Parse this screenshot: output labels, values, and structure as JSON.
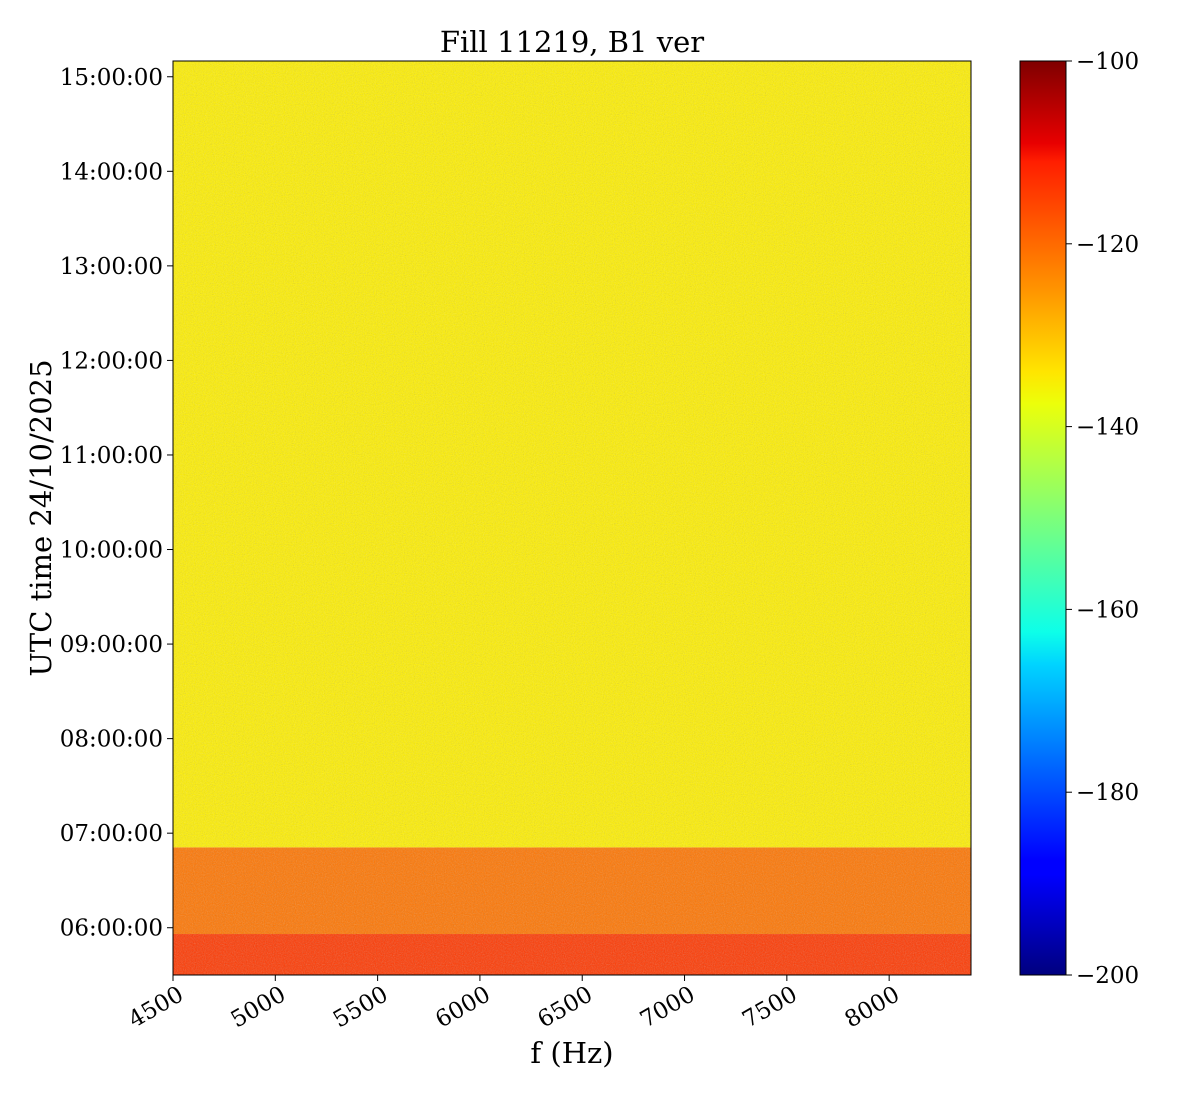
{
  "chart_data": {
    "type": "heatmap",
    "title": "Fill 11219, B1 ver",
    "xlabel": "f (Hz)",
    "ylabel": "UTC time 24/10/2025",
    "xlim": [
      4500,
      8400
    ],
    "ylim": [
      "05:30:00",
      "15:10:00"
    ],
    "x_ticks": [
      4500,
      5000,
      5500,
      6000,
      6500,
      7000,
      7500,
      8000
    ],
    "x_tick_labels": [
      "4500",
      "5000",
      "5500",
      "6000",
      "6500",
      "7000",
      "7500",
      "8000"
    ],
    "y_ticks": [
      "06:00:00",
      "07:00:00",
      "08:00:00",
      "09:00:00",
      "10:00:00",
      "11:00:00",
      "12:00:00",
      "13:00:00",
      "14:00:00",
      "15:00:00"
    ],
    "colorbar": {
      "colormap": "jet",
      "range": [
        -200,
        -100
      ],
      "ticks": [
        -100,
        -120,
        -140,
        -160,
        -180,
        -200
      ],
      "tick_labels": [
        "−100",
        "−120",
        "−140",
        "−160",
        "−180",
        "−200"
      ]
    },
    "regions": [
      {
        "t_start": "05:30:00",
        "t_end": "05:56:00",
        "level_db": -118
      },
      {
        "t_start": "05:56:00",
        "t_end": "06:51:00",
        "level_db": -124
      },
      {
        "t_start": "06:51:00",
        "t_end": "15:10:00",
        "level_db": -136
      }
    ],
    "grid": false
  }
}
